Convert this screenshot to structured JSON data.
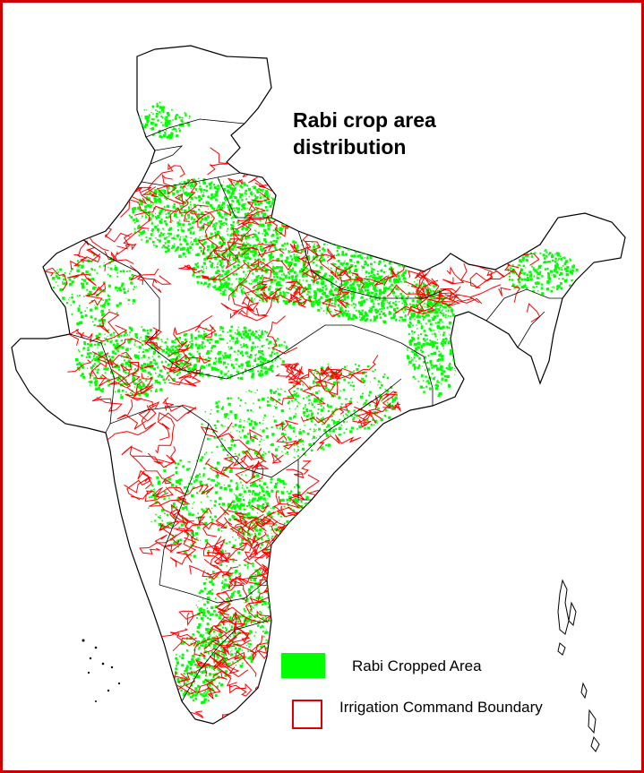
{
  "map": {
    "title": "Rabi crop area distribution",
    "colors": {
      "rabi_cropped_area": "#00ff00",
      "irrigation_command_boundary": "#ff0000",
      "state_boundary": "#000000",
      "frame": "#cc0000"
    }
  },
  "legend": {
    "items": [
      {
        "label": "Rabi Cropped Area",
        "symbol": "filled-green-rectangle",
        "color": "#00ff00"
      },
      {
        "label": "Irrigation Command Boundary",
        "symbol": "red-outline-square",
        "color": "#e00000"
      }
    ]
  }
}
